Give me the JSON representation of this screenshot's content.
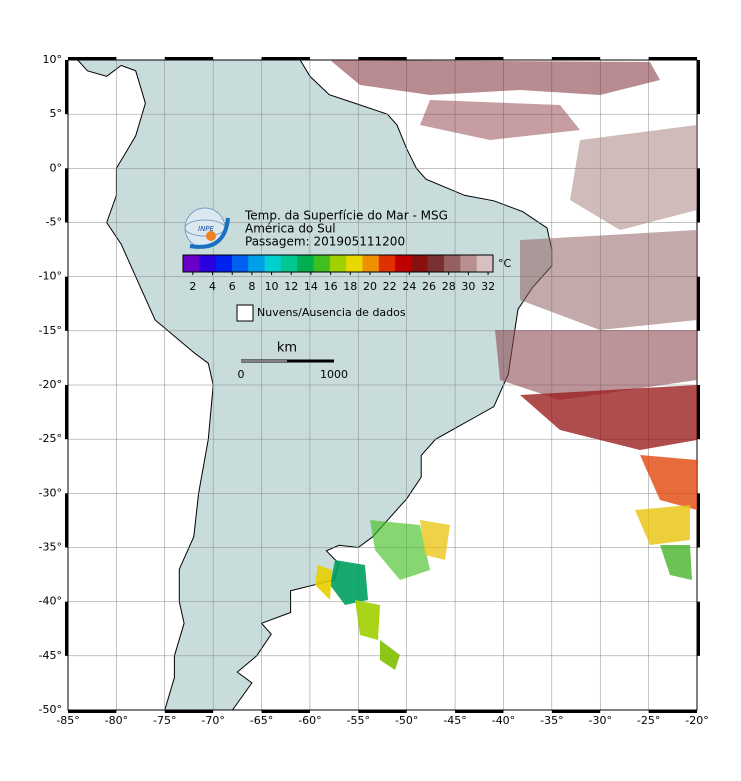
{
  "map": {
    "xlim": [
      -85,
      -20
    ],
    "ylim": [
      -50,
      10
    ],
    "lon_ticks": [
      {
        "value": -85,
        "label": "-85°"
      },
      {
        "value": -80,
        "label": "-80°"
      },
      {
        "value": -75,
        "label": "-75°"
      },
      {
        "value": -70,
        "label": "-70°"
      },
      {
        "value": -65,
        "label": "-65°"
      },
      {
        "value": -60,
        "label": "-60°"
      },
      {
        "value": -55,
        "label": "-55°"
      },
      {
        "value": -50,
        "label": "-50°"
      },
      {
        "value": -45,
        "label": "-45°"
      },
      {
        "value": -40,
        "label": "-40°"
      },
      {
        "value": -35,
        "label": "-35°"
      },
      {
        "value": -30,
        "label": "-30°"
      },
      {
        "value": -25,
        "label": "-25°"
      },
      {
        "value": -20,
        "label": "-20°"
      }
    ],
    "lat_ticks": [
      {
        "value": 10,
        "label": "10°"
      },
      {
        "value": 5,
        "label": "5°"
      },
      {
        "value": 0,
        "label": "0°"
      },
      {
        "value": -5,
        "label": "-5°"
      },
      {
        "value": -10,
        "label": "-10°"
      },
      {
        "value": -15,
        "label": "-15°"
      },
      {
        "value": -20,
        "label": "-20°"
      },
      {
        "value": -25,
        "label": "-25°"
      },
      {
        "value": -30,
        "label": "-30°"
      },
      {
        "value": -35,
        "label": "-35°"
      },
      {
        "value": -40,
        "label": "-40°"
      },
      {
        "value": -45,
        "label": "-45°"
      },
      {
        "value": -50,
        "label": "-50°"
      }
    ],
    "grid": true,
    "land_color": "#c9dcdc"
  },
  "header": {
    "logo_text": "INPE",
    "title": "Temp. da Superfície do Mar - MSG",
    "region": "América do Sul",
    "pass": "Passagem: 201905111200"
  },
  "colorbar": {
    "unit": "°C",
    "lim": [
      1,
      32.5
    ],
    "ticks": [
      2,
      4,
      6,
      8,
      10,
      12,
      14,
      16,
      18,
      20,
      22,
      24,
      26,
      28,
      30,
      32
    ],
    "colors": [
      "#6a00c8",
      "#2a00e0",
      "#0020f0",
      "#0060f0",
      "#00a0e8",
      "#00d0d0",
      "#00c890",
      "#00b050",
      "#40c020",
      "#a0d000",
      "#e8d800",
      "#f09000",
      "#e03000",
      "#c00000",
      "#8a1010",
      "#7a3030",
      "#966060",
      "#b89090",
      "#d8c0c0"
    ]
  },
  "legend": {
    "label": "Nuvens/Ausencia de dados"
  },
  "scale": {
    "unit": "km",
    "start": 0,
    "end": 1000
  }
}
